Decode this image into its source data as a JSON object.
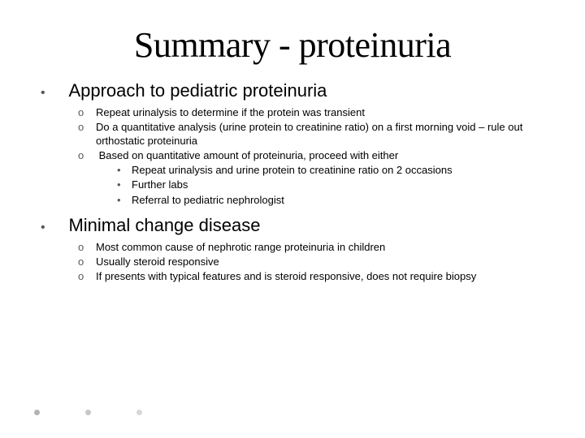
{
  "title": "Summary - proteinuria",
  "title_fontsize": 44,
  "title_color": "#000000",
  "section1": {
    "heading": "Approach to pediatric proteinuria",
    "heading_fontsize": 22,
    "items": [
      {
        "text": "Repeat urinalysis to determine if the protein was transient"
      },
      {
        "text": "Do a quantitative analysis (urine protein to creatinine ratio) on a first morning void – rule out orthostatic proteinuria"
      },
      {
        "text": "Based on quantitative amount of proteinuria, proceed with either",
        "sub": [
          "Repeat urinalysis and urine protein to creatinine ratio on 2 occasions",
          "Further labs",
          "Referral to pediatric nephrologist"
        ]
      }
    ],
    "item_fontsize": 13
  },
  "section2": {
    "heading": "Minimal change disease",
    "heading_fontsize": 22,
    "items": [
      {
        "text": "Most common cause of nephrotic range proteinuria in children"
      },
      {
        "text": "Usually steroid responsive"
      },
      {
        "text": "If presents with typical features and is steroid responsive, does not require biopsy"
      }
    ],
    "item_fontsize": 13
  },
  "decorative_dots": {
    "colors": [
      "#b4b4b4",
      "#c8c8c8",
      "#d8d8d8"
    ]
  },
  "background_color": "#ffffff",
  "bullet_color": "#595959"
}
